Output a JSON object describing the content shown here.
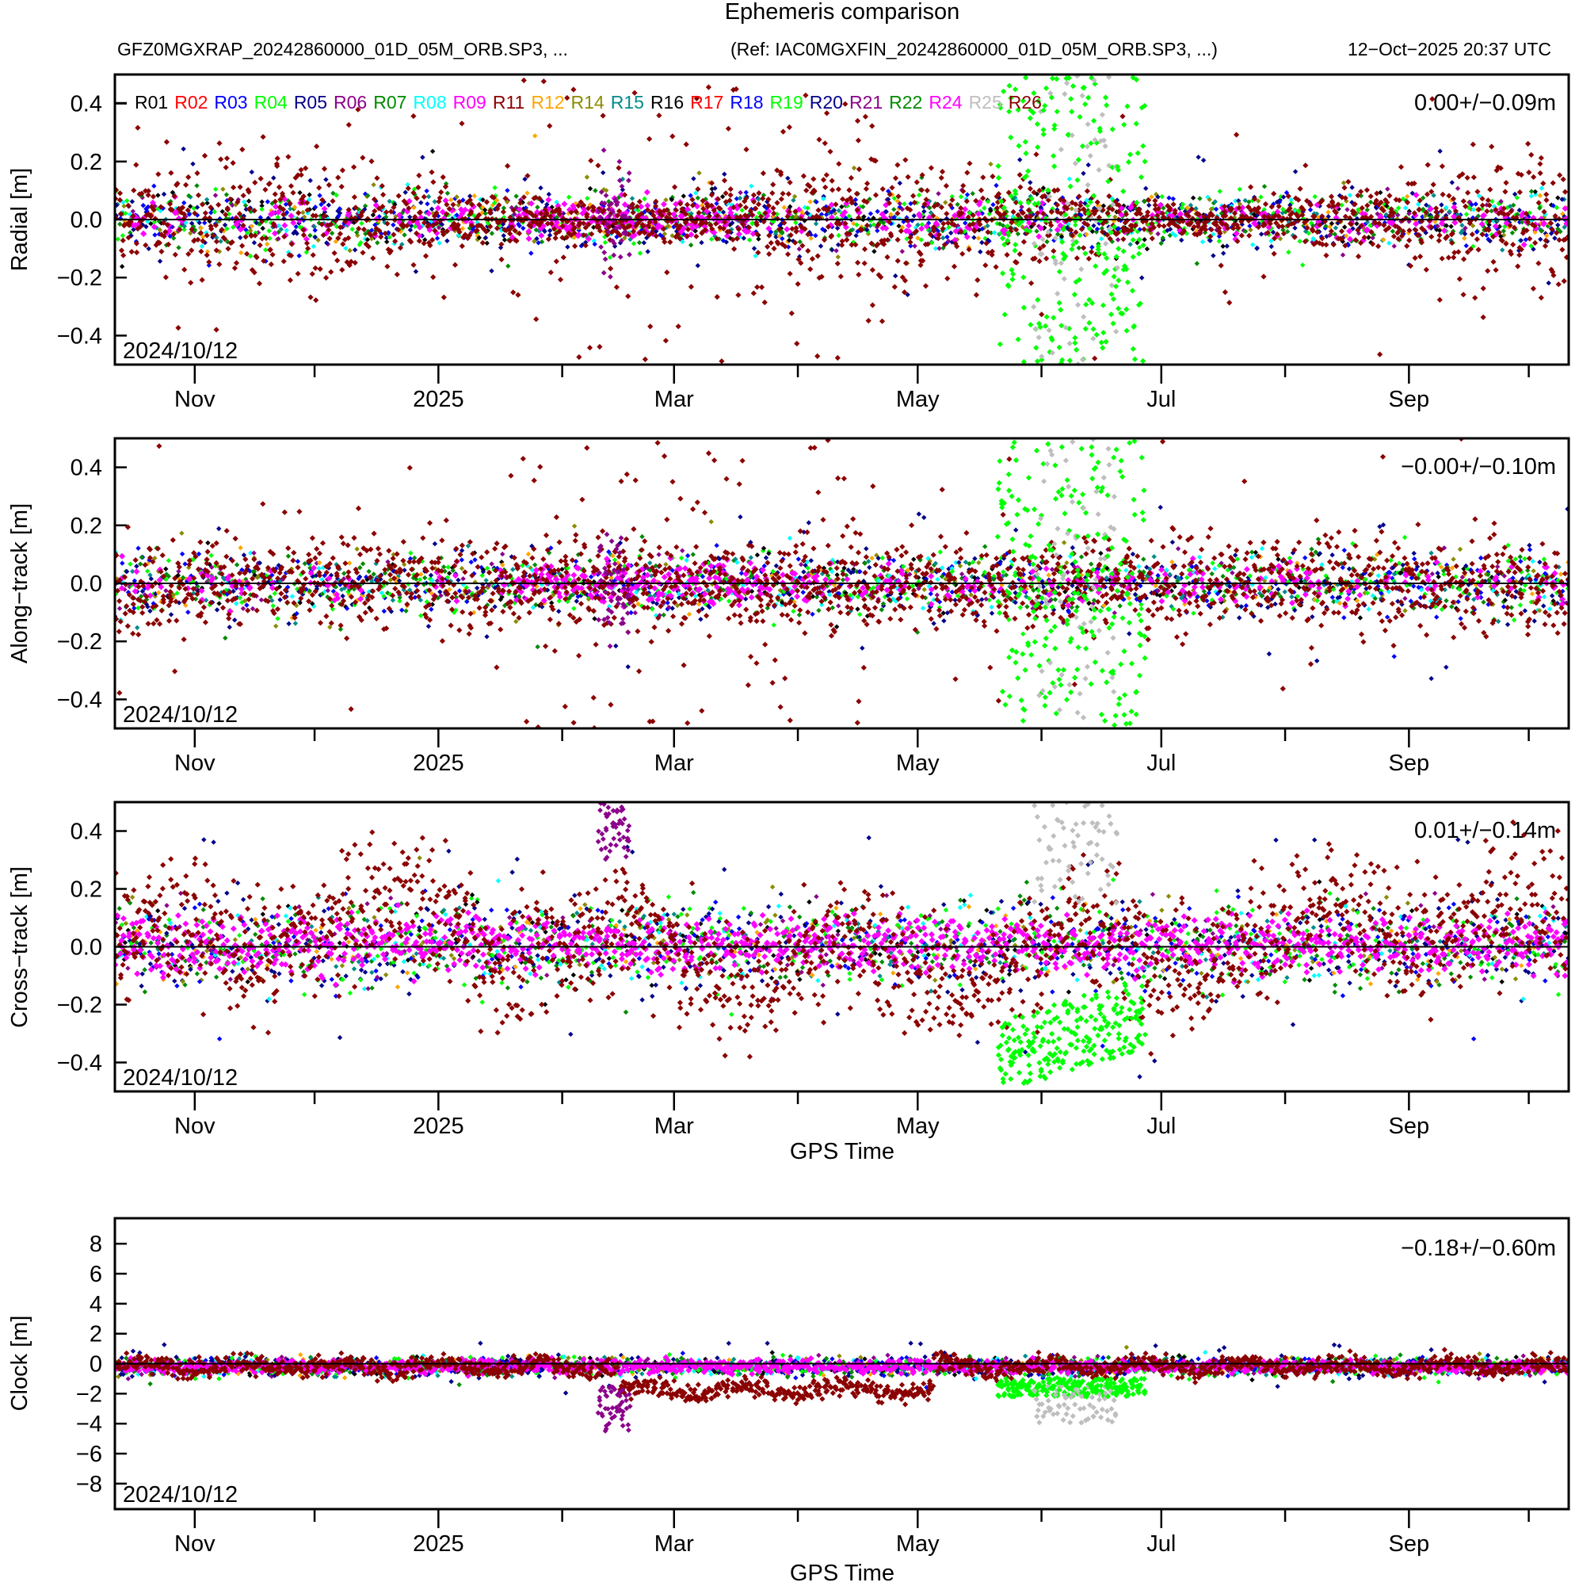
{
  "title": "Ephemeris comparison",
  "subtitle_left": "GFZ0MGXRAP_20242860000_01D_05M_ORB.SP3, ...",
  "subtitle_ref": "(Ref: IAC0MGXFIN_20242860000_01D_05M_ORB.SP3, ...)",
  "timestamp": "12−Oct−2025 20:37 UTC",
  "colors": {
    "R01": "#000000",
    "R02": "#ff0000",
    "R03": "#0000ff",
    "R04": "#00ff00",
    "R05": "#00008b",
    "R06": "#8b008b",
    "R07": "#008b00",
    "R08": "#00ffff",
    "R09": "#ff00ff",
    "R11": "#8b0000",
    "R12": "#ffa500",
    "R14": "#8b8b00",
    "R15": "#008b8b",
    "R16": "#000000",
    "R17": "#ff0000",
    "R18": "#0000ff",
    "R19": "#00ff00",
    "R20": "#00008b",
    "R21": "#8b008b",
    "R22": "#008b00",
    "R24": "#ff00ff",
    "R25": "#bebebe",
    "R26": "#8b0000"
  },
  "chart_data": [
    {
      "type": "scatter",
      "panel": "radial",
      "ylabel": "Radial [m]",
      "xlabel": "",
      "ylim": [
        -0.5,
        0.5
      ],
      "yticks": [
        -0.4,
        -0.2,
        0.0,
        0.2,
        0.4
      ],
      "ytick_labels": [
        "−0.4",
        "−0.2",
        "0.0",
        "0.2",
        "0.4"
      ],
      "xlim": [
        "2024-10-12",
        "2025-10-11"
      ],
      "xtick_labels": [
        "Nov",
        "2025",
        "Mar",
        "May",
        "Jul",
        "Sep"
      ],
      "stat": "0.00+/−0.09m",
      "start_label": "2024/10/12",
      "legend": [
        "R01",
        "R02",
        "R03",
        "R04",
        "R05",
        "R06",
        "R07",
        "R08",
        "R09",
        "R11",
        "R12",
        "R14",
        "R15",
        "R16",
        "R17",
        "R18",
        "R19",
        "R20",
        "R21",
        "R22",
        "R24",
        "R25",
        "R26"
      ],
      "legend_position": "top-left",
      "mean": 0.0,
      "std": 0.09,
      "series": [
        {
          "name": "R26",
          "spread": 0.12,
          "outlier_spread": 0.45,
          "from": "2024-10-12",
          "to": "2025-10-11"
        },
        {
          "name": "R09",
          "spread": 0.05,
          "outlier_spread": 0.1,
          "from": "2025-01-25",
          "to": "2025-04-10"
        },
        {
          "name": "R05",
          "spread": 0.08,
          "outlier_spread": 0.15,
          "from": "2024-10-12",
          "to": "2025-10-11"
        },
        {
          "name": "R19",
          "spread": 0.07,
          "outlier_spread": 0.5,
          "from": "2025-05-20",
          "to": "2025-06-28"
        },
        {
          "name": "R25",
          "spread": 0.25,
          "outlier_spread": 0.5,
          "from": "2025-05-28",
          "to": "2025-06-16"
        }
      ]
    },
    {
      "type": "scatter",
      "panel": "along-track",
      "ylabel": "Along−track [m]",
      "xlabel": "",
      "ylim": [
        -0.5,
        0.5
      ],
      "yticks": [
        -0.4,
        -0.2,
        0.0,
        0.2,
        0.4
      ],
      "ytick_labels": [
        "−0.4",
        "−0.2",
        "0.0",
        "0.2",
        "0.4"
      ],
      "xlim": [
        "2024-10-12",
        "2025-10-11"
      ],
      "xtick_labels": [
        "Nov",
        "2025",
        "Mar",
        "May",
        "Jul",
        "Sep"
      ],
      "stat": "−0.00+/−0.10m",
      "start_label": "2024/10/12",
      "mean": -0.0,
      "std": 0.1
    },
    {
      "type": "scatter",
      "panel": "cross-track",
      "ylabel": "Cross−track [m]",
      "xlabel": "GPS Time",
      "ylim": [
        -0.5,
        0.5
      ],
      "yticks": [
        -0.4,
        -0.2,
        0.0,
        0.2,
        0.4
      ],
      "ytick_labels": [
        "−0.4",
        "−0.2",
        "0.0",
        "0.2",
        "0.4"
      ],
      "xlim": [
        "2024-10-12",
        "2025-10-11"
      ],
      "xtick_labels": [
        "Nov",
        "2025",
        "Mar",
        "May",
        "Jul",
        "Sep"
      ],
      "stat": "0.01+/−0.14m",
      "start_label": "2024/10/12",
      "mean": 0.01,
      "std": 0.14
    },
    {
      "type": "scatter",
      "panel": "clock",
      "ylabel": "Clock [m]",
      "xlabel": "GPS Time",
      "ylim": [
        -9.7,
        9.7
      ],
      "yticks": [
        -8,
        -6,
        -4,
        -2,
        0,
        2,
        4,
        6,
        8
      ],
      "ytick_labels": [
        "−8",
        "−6",
        "−4",
        "−2",
        "0",
        "2",
        "4",
        "6",
        "8"
      ],
      "xlim": [
        "2024-10-12",
        "2025-10-11"
      ],
      "xtick_labels": [
        "Nov",
        "2025",
        "Mar",
        "May",
        "Jul",
        "Sep"
      ],
      "stat": "−0.18+/−0.60m",
      "start_label": "2024/10/12",
      "mean": -0.18,
      "std": 0.6
    }
  ]
}
